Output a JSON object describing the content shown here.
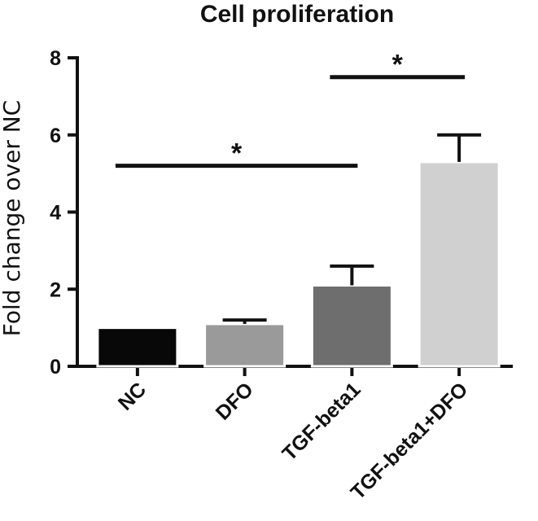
{
  "chart_data": {
    "type": "bar",
    "title": "Cell proliferation",
    "xlabel": "",
    "ylabel": "Fold change over NC",
    "ylim": [
      0,
      8
    ],
    "yticks": [
      "0",
      "2",
      "4",
      "6",
      "8"
    ],
    "categories": [
      "NC",
      "DFO",
      "TGF-beta1",
      "TGF-beta1+DFO"
    ],
    "values": [
      1.0,
      1.1,
      2.1,
      5.3
    ],
    "error_upper": [
      1.0,
      1.2,
      2.6,
      6.0
    ],
    "bar_colors": [
      "#080808",
      "#9a9a9a",
      "#6e6e6e",
      "#d0d0d0"
    ],
    "significance": [
      {
        "from": "NC",
        "to": "TGF-beta1",
        "label": "*",
        "y": 5.2
      },
      {
        "from": "TGF-beta1",
        "to": "TGF-beta1+DFO",
        "label": "*",
        "y": 7.5
      }
    ],
    "grid": false,
    "legend": "none"
  }
}
